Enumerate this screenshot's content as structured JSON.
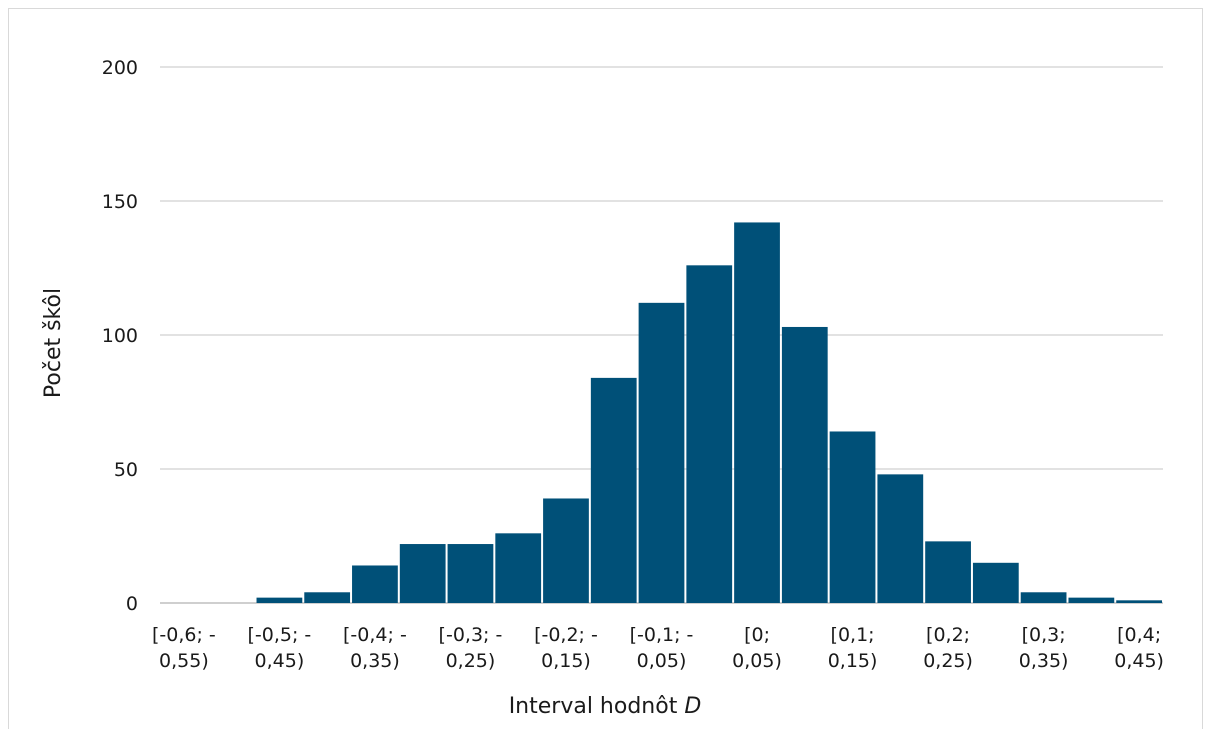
{
  "chart_data": {
    "type": "bar",
    "title": "",
    "xlabel": "Interval hodnôt",
    "xlabel_italic": "D",
    "ylabel": "Počet škôl",
    "ylim": [
      0,
      200
    ],
    "yticks": [
      "0",
      "50",
      "100",
      "150",
      "200"
    ],
    "ytick_values": [
      0,
      50,
      100,
      150,
      200
    ],
    "grid": true,
    "bar_color": "#005078",
    "bins": [
      "-0,6",
      "-0,55",
      "-0,5",
      "-0,45",
      "-0,4",
      "-0,35",
      "-0,3",
      "-0,25",
      "-0,2",
      "-0,15",
      "-0,1",
      "-0,05",
      "0",
      "0,05",
      "0,1",
      "0,15",
      "0,2",
      "0,25",
      "0,3",
      "0,35",
      "0,4"
    ],
    "values": [
      0,
      0,
      2,
      4,
      14,
      22,
      22,
      26,
      39,
      84,
      112,
      126,
      142,
      103,
      64,
      48,
      23,
      15,
      4,
      2,
      1
    ],
    "category_labels": [
      [
        "[-0,6; -",
        "0,55)"
      ],
      [
        "[-0,5; -",
        "0,45)"
      ],
      [
        "[-0,4; -",
        "0,35)"
      ],
      [
        "[-0,3; -",
        "0,25)"
      ],
      [
        "[-0,2; -",
        "0,15)"
      ],
      [
        "[-0,1; -",
        "0,05)"
      ],
      [
        "[0;",
        "0,05)"
      ],
      [
        "[0,1;",
        "0,15)"
      ],
      [
        "[0,2;",
        "0,25)"
      ],
      [
        "[0,3;",
        "0,35)"
      ],
      [
        "[0,4;",
        "0,45)"
      ]
    ],
    "label_every": 2
  }
}
